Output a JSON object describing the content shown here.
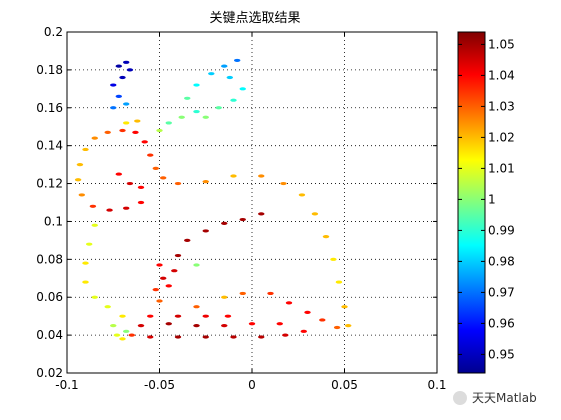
{
  "chart_data": {
    "type": "scatter",
    "title": "关键点选取结果",
    "xlabel": "",
    "ylabel": "",
    "xlim": [
      -0.1,
      0.1
    ],
    "ylim": [
      0.02,
      0.2
    ],
    "xticks": [
      "-0.1",
      "-0.05",
      "0",
      "0.05",
      "0.1"
    ],
    "yticks": [
      "0.02",
      "0.04",
      "0.06",
      "0.08",
      "0.1",
      "0.12",
      "0.14",
      "0.16",
      "0.18",
      "0.2"
    ],
    "grid": true,
    "colormap": "jet",
    "colorbar": {
      "range": [
        0.944,
        1.054
      ],
      "ticks": [
        "0.95",
        "0.96",
        "0.97",
        "0.98",
        "0.99",
        "1",
        "1.01",
        "1.02",
        "1.03",
        "1.04",
        "1.05"
      ]
    },
    "series": [
      {
        "points": [
          [
            -0.073,
            0.04,
            1.01
          ],
          [
            -0.068,
            0.042,
            1.0
          ],
          [
            -0.07,
            0.038,
            1.015
          ],
          [
            -0.065,
            0.04,
            1.035
          ],
          [
            -0.055,
            0.039,
            1.045
          ],
          [
            -0.04,
            0.039,
            1.05
          ],
          [
            -0.025,
            0.039,
            1.05
          ],
          [
            -0.01,
            0.039,
            1.048
          ],
          [
            0.005,
            0.039,
            1.048
          ],
          [
            0.018,
            0.04,
            1.045
          ],
          [
            0.028,
            0.042,
            1.04
          ],
          [
            -0.06,
            0.045,
            1.045
          ],
          [
            -0.045,
            0.046,
            1.05
          ],
          [
            -0.03,
            0.045,
            1.05
          ],
          [
            -0.015,
            0.045,
            1.045
          ],
          [
            0.0,
            0.046,
            1.04
          ],
          [
            0.015,
            0.046,
            1.04
          ],
          [
            -0.055,
            0.05,
            1.04
          ],
          [
            -0.04,
            0.05,
            1.045
          ],
          [
            -0.025,
            0.05,
            1.042
          ],
          [
            -0.013,
            0.05,
            1.04
          ],
          [
            -0.05,
            0.058,
            1.03
          ],
          [
            -0.045,
            0.066,
            1.04
          ],
          [
            -0.042,
            0.074,
            1.045
          ],
          [
            -0.04,
            0.082,
            1.05
          ],
          [
            -0.035,
            0.09,
            1.05
          ],
          [
            -0.025,
            0.095,
            1.05
          ],
          [
            -0.015,
            0.099,
            1.05
          ],
          [
            -0.005,
            0.101,
            1.05
          ],
          [
            0.005,
            0.104,
            1.05
          ],
          [
            -0.048,
            0.07,
            1.045
          ],
          [
            -0.05,
            0.077,
            1.04
          ],
          [
            -0.052,
            0.064,
            1.035
          ],
          [
            -0.03,
            0.055,
            1.03
          ],
          [
            -0.015,
            0.06,
            1.02
          ],
          [
            -0.005,
            0.062,
            1.03
          ],
          [
            0.01,
            0.062,
            1.035
          ],
          [
            0.02,
            0.057,
            1.04
          ],
          [
            0.03,
            0.052,
            1.04
          ],
          [
            0.038,
            0.048,
            1.035
          ],
          [
            0.046,
            0.044,
            1.03
          ],
          [
            0.052,
            0.045,
            1.02
          ],
          [
            0.05,
            0.055,
            1.02
          ],
          [
            0.047,
            0.068,
            1.015
          ],
          [
            0.044,
            0.08,
            1.015
          ],
          [
            0.04,
            0.092,
            1.02
          ],
          [
            0.034,
            0.104,
            1.02
          ],
          [
            0.027,
            0.114,
            1.02
          ],
          [
            0.017,
            0.12,
            1.025
          ],
          [
            0.005,
            0.124,
            1.025
          ],
          [
            -0.01,
            0.124,
            1.02
          ],
          [
            -0.025,
            0.121,
            1.025
          ],
          [
            -0.04,
            0.12,
            1.03
          ],
          [
            -0.048,
            0.123,
            1.03
          ],
          [
            -0.052,
            0.128,
            1.03
          ],
          [
            -0.055,
            0.135,
            1.035
          ],
          [
            -0.058,
            0.142,
            1.04
          ],
          [
            -0.063,
            0.147,
            1.04
          ],
          [
            -0.07,
            0.148,
            1.035
          ],
          [
            -0.078,
            0.147,
            1.03
          ],
          [
            -0.085,
            0.144,
            1.025
          ],
          [
            -0.09,
            0.138,
            1.02
          ],
          [
            -0.093,
            0.13,
            1.02
          ],
          [
            -0.094,
            0.122,
            1.02
          ],
          [
            -0.092,
            0.114,
            1.025
          ],
          [
            -0.086,
            0.108,
            1.035
          ],
          [
            -0.077,
            0.106,
            1.045
          ],
          [
            -0.068,
            0.107,
            1.045
          ],
          [
            -0.06,
            0.11,
            1.04
          ],
          [
            -0.072,
            0.125,
            1.04
          ],
          [
            -0.066,
            0.12,
            1.045
          ],
          [
            -0.06,
            0.118,
            1.04
          ],
          [
            -0.062,
            0.153,
            1.02
          ],
          [
            -0.068,
            0.152,
            1.015
          ],
          [
            -0.075,
            0.16,
            0.97
          ],
          [
            -0.072,
            0.166,
            0.965
          ],
          [
            -0.068,
            0.162,
            0.975
          ],
          [
            -0.075,
            0.172,
            0.955
          ],
          [
            -0.07,
            0.176,
            0.95
          ],
          [
            -0.066,
            0.18,
            0.95
          ],
          [
            -0.072,
            0.182,
            0.948
          ],
          [
            -0.068,
            0.184,
            0.95
          ],
          [
            -0.05,
            0.148,
            1.005
          ],
          [
            -0.045,
            0.152,
            0.995
          ],
          [
            -0.038,
            0.155,
            1.0
          ],
          [
            -0.03,
            0.158,
            0.99
          ],
          [
            -0.025,
            0.155,
            1.0
          ],
          [
            -0.018,
            0.16,
            0.995
          ],
          [
            -0.035,
            0.165,
            0.995
          ],
          [
            -0.03,
            0.172,
            0.985
          ],
          [
            -0.022,
            0.178,
            0.98
          ],
          [
            -0.015,
            0.182,
            0.975
          ],
          [
            -0.008,
            0.185,
            0.97
          ],
          [
            -0.012,
            0.176,
            0.98
          ],
          [
            -0.005,
            0.17,
            0.985
          ],
          [
            -0.01,
            0.164,
            0.99
          ],
          [
            -0.085,
            0.098,
            1.01
          ],
          [
            -0.088,
            0.088,
            1.01
          ],
          [
            -0.09,
            0.078,
            1.015
          ],
          [
            -0.09,
            0.068,
            1.015
          ],
          [
            -0.085,
            0.06,
            1.01
          ],
          [
            -0.078,
            0.055,
            1.01
          ],
          [
            -0.07,
            0.05,
            1.015
          ],
          [
            -0.075,
            0.045,
            1.005
          ],
          [
            -0.03,
            0.077,
            1.0
          ]
        ]
      }
    ],
    "watermark": "天天Matlab"
  }
}
